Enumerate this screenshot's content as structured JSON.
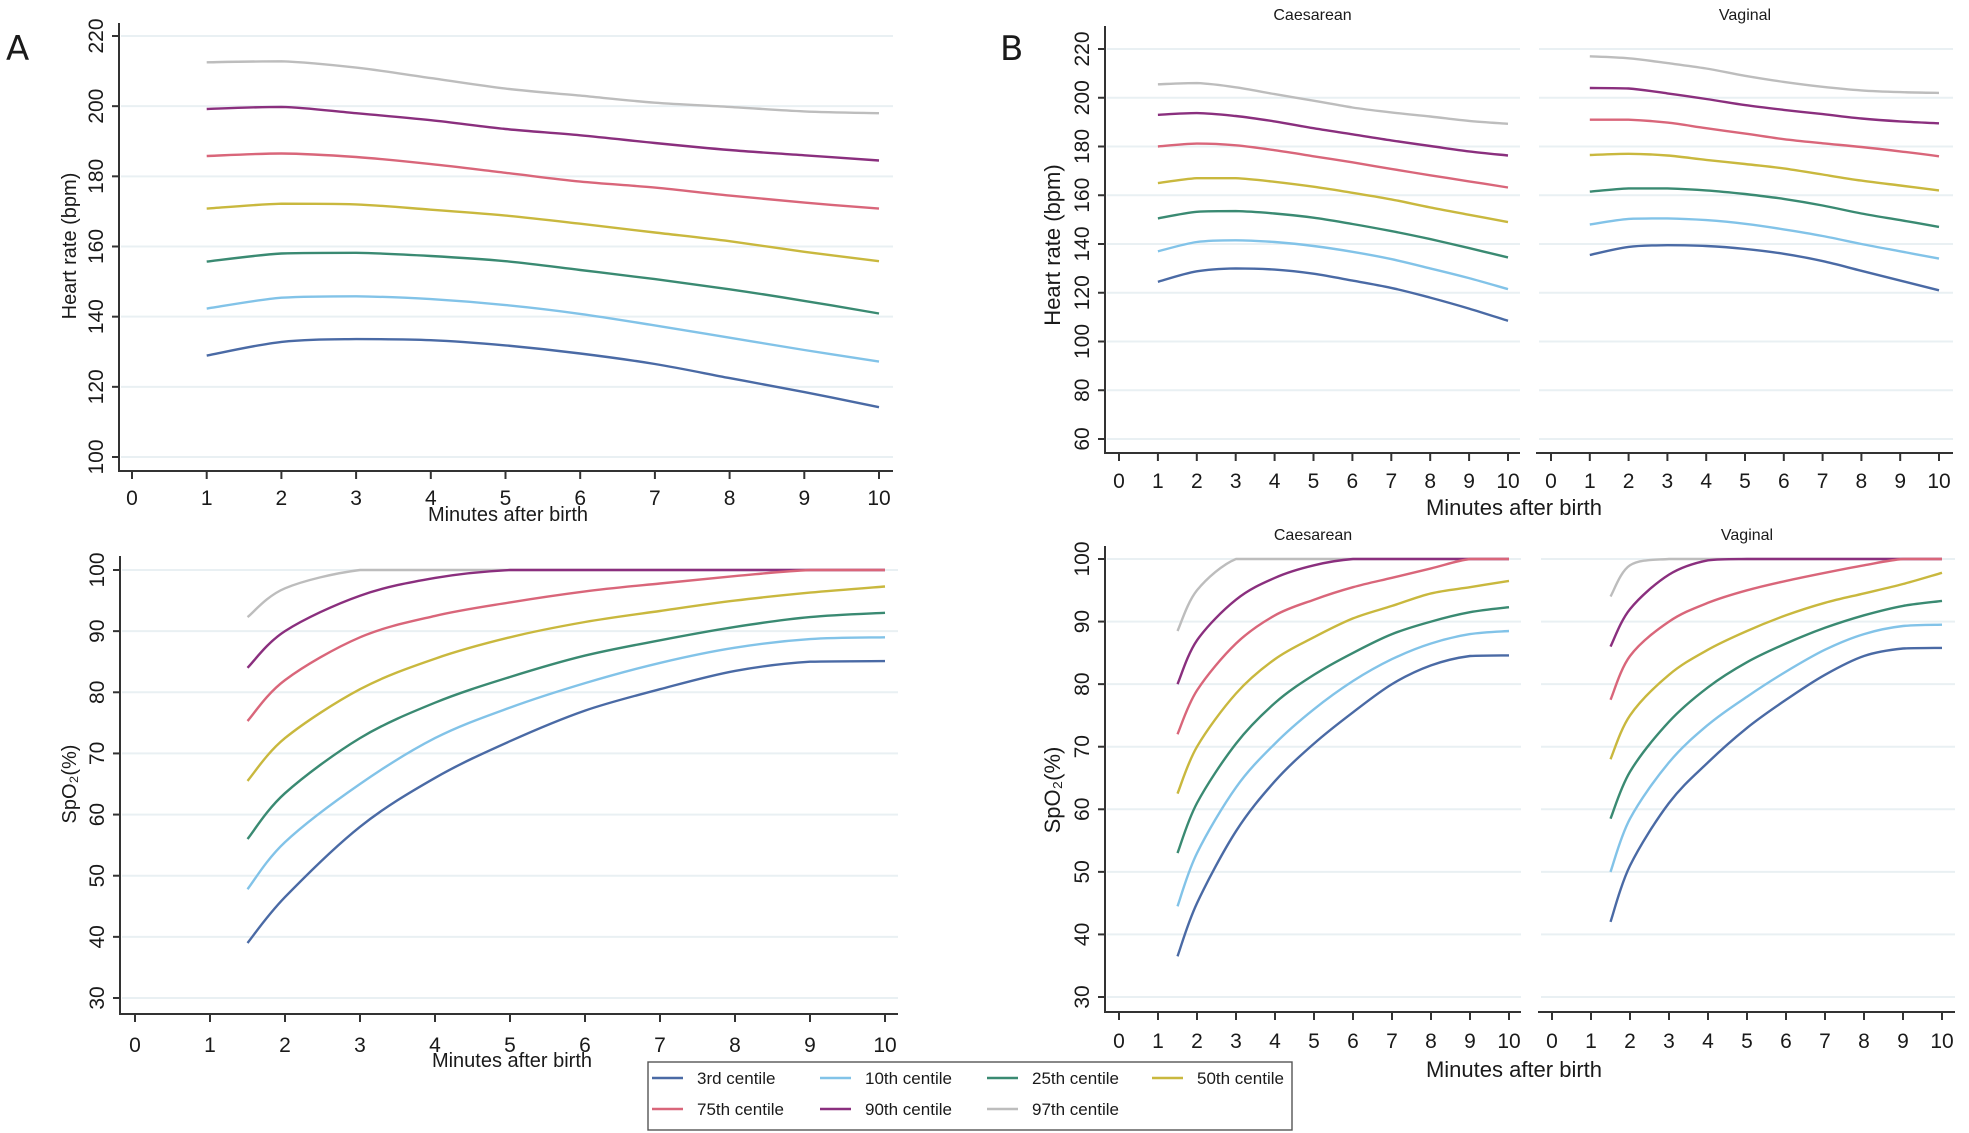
{
  "figure": {
    "panel_labels": [
      "A",
      "B"
    ],
    "legend": [
      {
        "key": "p3",
        "label": "3rd centile",
        "color": "#4a6aa5"
      },
      {
        "key": "p10",
        "label": "10th centile",
        "color": "#82c3e8"
      },
      {
        "key": "p25",
        "label": "25th centile",
        "color": "#3a8a72"
      },
      {
        "key": "p50",
        "label": "50th centile",
        "color": "#c9b83e"
      },
      {
        "key": "p75",
        "label": "75th centile",
        "color": "#d9667a"
      },
      {
        "key": "p90",
        "label": "90th centile",
        "color": "#8a2f7e"
      },
      {
        "key": "p97",
        "label": "97th centile",
        "color": "#bdbdbd"
      }
    ]
  },
  "chart_data": [
    {
      "id": "A-hr",
      "panel": "A",
      "type": "line",
      "title": "",
      "xlabel": "Minutes after birth",
      "ylabel": "Heart rate (bpm)",
      "xlim": [
        0,
        10
      ],
      "ylim": [
        100,
        220
      ],
      "xticks": [
        0,
        1,
        2,
        3,
        4,
        5,
        6,
        7,
        8,
        9,
        10
      ],
      "yticks": [
        100,
        120,
        140,
        160,
        180,
        200,
        220
      ],
      "grid": true,
      "x": [
        1,
        2,
        3,
        4,
        5,
        6,
        7,
        8,
        9,
        10
      ],
      "series": [
        {
          "name": "3rd centile",
          "key": "p3",
          "values": [
            128.9,
            132.8,
            133.6,
            133.3,
            131.8,
            129.5,
            126.5,
            122.5,
            118.5,
            114.2
          ]
        },
        {
          "name": "10th centile",
          "key": "p10",
          "values": [
            142.3,
            145.4,
            145.8,
            145.0,
            143.3,
            140.8,
            137.5,
            134.0,
            130.5,
            127.2
          ]
        },
        {
          "name": "25th centile",
          "key": "p25",
          "values": [
            155.7,
            158.0,
            158.2,
            157.3,
            155.8,
            153.3,
            150.7,
            147.8,
            144.5,
            140.9
          ]
        },
        {
          "name": "50th centile",
          "key": "p50",
          "values": [
            170.8,
            172.2,
            172.0,
            170.5,
            168.8,
            166.5,
            164.0,
            161.5,
            158.5,
            155.8
          ]
        },
        {
          "name": "75th centile",
          "key": "p75",
          "values": [
            185.8,
            186.5,
            185.5,
            183.5,
            181.0,
            178.5,
            176.8,
            174.5,
            172.5,
            170.8
          ]
        },
        {
          "name": "90th centile",
          "key": "p90",
          "values": [
            199.2,
            199.8,
            198.0,
            196.0,
            193.5,
            191.7,
            189.5,
            187.5,
            186.0,
            184.5
          ]
        },
        {
          "name": "97th centile",
          "key": "p97",
          "values": [
            212.5,
            212.8,
            211.0,
            208.0,
            205.0,
            203.0,
            201.0,
            199.8,
            198.5,
            198.0
          ]
        }
      ]
    },
    {
      "id": "A-spo2",
      "panel": "A",
      "type": "line",
      "title": "",
      "xlabel": "Minutes after birth",
      "ylabel": "SpO₂(%)",
      "xlim": [
        0,
        10
      ],
      "ylim": [
        30,
        100
      ],
      "xticks": [
        0,
        1,
        2,
        3,
        4,
        5,
        6,
        7,
        8,
        9,
        10
      ],
      "yticks": [
        30,
        40,
        50,
        60,
        70,
        80,
        90,
        100
      ],
      "grid": true,
      "x": [
        1.5,
        2,
        3,
        4,
        5,
        6,
        7,
        8,
        9,
        10
      ],
      "series": [
        {
          "name": "3rd centile",
          "key": "p3",
          "values": [
            39.0,
            46.5,
            58.0,
            66.0,
            72.0,
            77.0,
            80.5,
            83.5,
            85.0,
            85.1
          ]
        },
        {
          "name": "10th centile",
          "key": "p10",
          "values": [
            47.8,
            55.5,
            65.0,
            72.5,
            77.5,
            81.5,
            84.8,
            87.3,
            88.7,
            89.0
          ]
        },
        {
          "name": "25th centile",
          "key": "p25",
          "values": [
            56.0,
            63.5,
            72.5,
            78.3,
            82.5,
            86.0,
            88.5,
            90.7,
            92.3,
            93.0
          ]
        },
        {
          "name": "50th centile",
          "key": "p50",
          "values": [
            65.5,
            72.5,
            80.5,
            85.5,
            89.0,
            91.5,
            93.3,
            95.0,
            96.3,
            97.3
          ]
        },
        {
          "name": "75th centile",
          "key": "p75",
          "values": [
            75.3,
            82.0,
            89.0,
            92.5,
            94.7,
            96.5,
            97.8,
            99.0,
            100,
            100
          ]
        },
        {
          "name": "90th centile",
          "key": "p90",
          "values": [
            84.0,
            90.0,
            95.8,
            98.7,
            100,
            100,
            100,
            100,
            100,
            100
          ]
        },
        {
          "name": "97th centile",
          "key": "p97",
          "values": [
            92.3,
            97.0,
            100,
            100,
            100,
            100,
            100,
            100,
            100,
            100
          ]
        }
      ]
    },
    {
      "id": "B-hr-caesarean",
      "panel": "B",
      "type": "line",
      "title": "Caesarean",
      "xlabel": "Minutes after birth",
      "ylabel": "Heart rate (bpm)",
      "xlim": [
        0,
        10
      ],
      "ylim": [
        60,
        220
      ],
      "xticks": [
        0,
        1,
        2,
        3,
        4,
        5,
        6,
        7,
        8,
        9,
        10
      ],
      "yticks": [
        60,
        80,
        100,
        120,
        140,
        160,
        180,
        200,
        220
      ],
      "grid": true,
      "x": [
        1,
        2,
        3,
        4,
        5,
        6,
        7,
        8,
        9,
        10
      ],
      "series": [
        {
          "name": "3rd centile",
          "key": "p3",
          "values": [
            124.5,
            128.8,
            130.0,
            129.5,
            127.8,
            125.0,
            122.0,
            118.0,
            113.5,
            108.5
          ]
        },
        {
          "name": "10th centile",
          "key": "p10",
          "values": [
            137.0,
            140.8,
            141.5,
            140.8,
            139.2,
            136.8,
            133.8,
            130.0,
            126.0,
            121.5
          ]
        },
        {
          "name": "25th centile",
          "key": "p25",
          "values": [
            150.5,
            153.2,
            153.5,
            152.5,
            150.8,
            148.2,
            145.3,
            142.0,
            138.3,
            134.5
          ]
        },
        {
          "name": "50th centile",
          "key": "p50",
          "values": [
            165.0,
            167.0,
            167.0,
            165.5,
            163.5,
            161.0,
            158.3,
            155.0,
            152.0,
            149.0
          ]
        },
        {
          "name": "75th centile",
          "key": "p75",
          "values": [
            180.0,
            181.2,
            180.5,
            178.5,
            176.0,
            173.5,
            170.8,
            168.2,
            165.7,
            163.2
          ]
        },
        {
          "name": "90th centile",
          "key": "p90",
          "values": [
            193.0,
            193.7,
            192.5,
            190.3,
            187.5,
            185.0,
            182.5,
            180.2,
            178.0,
            176.3
          ]
        },
        {
          "name": "97th centile",
          "key": "p97",
          "values": [
            205.5,
            206.0,
            204.3,
            201.5,
            198.8,
            196.0,
            194.0,
            192.3,
            190.5,
            189.3
          ]
        }
      ]
    },
    {
      "id": "B-hr-vaginal",
      "panel": "B",
      "type": "line",
      "title": "Vaginal",
      "xlabel": "Minutes after birth",
      "ylabel": "Heart rate (bpm)",
      "xlim": [
        0,
        10
      ],
      "ylim": [
        60,
        220
      ],
      "xticks": [
        0,
        1,
        2,
        3,
        4,
        5,
        6,
        7,
        8,
        9,
        10
      ],
      "yticks": [
        60,
        80,
        100,
        120,
        140,
        160,
        180,
        200,
        220
      ],
      "grid": true,
      "x": [
        1,
        2,
        3,
        4,
        5,
        6,
        7,
        8,
        9,
        10
      ],
      "series": [
        {
          "name": "3rd centile",
          "key": "p3",
          "values": [
            135.5,
            138.8,
            139.5,
            139.2,
            138.0,
            136.0,
            133.0,
            129.0,
            125.0,
            121.0
          ]
        },
        {
          "name": "10th centile",
          "key": "p10",
          "values": [
            148.0,
            150.3,
            150.5,
            149.8,
            148.3,
            146.0,
            143.3,
            140.0,
            137.0,
            134.0
          ]
        },
        {
          "name": "25th centile",
          "key": "p25",
          "values": [
            161.5,
            162.8,
            162.8,
            162.0,
            160.5,
            158.5,
            155.8,
            152.5,
            149.8,
            147.0
          ]
        },
        {
          "name": "50th centile",
          "key": "p50",
          "values": [
            176.5,
            177.0,
            176.3,
            174.5,
            172.8,
            171.0,
            168.5,
            166.0,
            164.0,
            162.0
          ]
        },
        {
          "name": "75th centile",
          "key": "p75",
          "values": [
            191.0,
            191.0,
            189.8,
            187.5,
            185.3,
            183.0,
            181.3,
            179.8,
            178.0,
            176.0
          ]
        },
        {
          "name": "90th centile",
          "key": "p90",
          "values": [
            204.0,
            203.8,
            201.8,
            199.5,
            197.0,
            195.0,
            193.3,
            191.5,
            190.3,
            189.5
          ]
        },
        {
          "name": "97th centile",
          "key": "p97",
          "values": [
            217.0,
            216.2,
            214.2,
            212.0,
            209.0,
            206.5,
            204.5,
            203.0,
            202.3,
            202.0
          ]
        }
      ]
    },
    {
      "id": "B-spo2-caesarean",
      "panel": "B",
      "type": "line",
      "title": "Caesarean",
      "xlabel": "Minutes after birth",
      "ylabel": "SpO₂(%)",
      "xlim": [
        0,
        10
      ],
      "ylim": [
        30,
        100
      ],
      "xticks": [
        0,
        1,
        2,
        3,
        4,
        5,
        6,
        7,
        8,
        9,
        10
      ],
      "yticks": [
        30,
        40,
        50,
        60,
        70,
        80,
        90,
        100
      ],
      "grid": true,
      "x": [
        1.5,
        2,
        3,
        4,
        5,
        6,
        7,
        8,
        9,
        10
      ],
      "series": [
        {
          "name": "3rd centile",
          "key": "p3",
          "values": [
            36.5,
            45.0,
            56.5,
            64.5,
            70.5,
            75.5,
            80.0,
            83.0,
            84.5,
            84.6
          ]
        },
        {
          "name": "10th centile",
          "key": "p10",
          "values": [
            44.5,
            53.0,
            63.5,
            70.5,
            76.0,
            80.5,
            84.0,
            86.5,
            88.0,
            88.5
          ]
        },
        {
          "name": "25th centile",
          "key": "p25",
          "values": [
            53.0,
            61.0,
            70.5,
            77.0,
            81.5,
            85.0,
            88.0,
            90.0,
            91.5,
            92.3
          ]
        },
        {
          "name": "50th centile",
          "key": "p50",
          "values": [
            62.5,
            70.0,
            78.5,
            84.0,
            87.5,
            90.5,
            92.5,
            94.5,
            95.5,
            96.5
          ]
        },
        {
          "name": "75th centile",
          "key": "p75",
          "values": [
            72.0,
            79.0,
            86.5,
            91.0,
            93.5,
            95.5,
            97.0,
            98.5,
            100,
            100
          ]
        },
        {
          "name": "90th centile",
          "key": "p90",
          "values": [
            80.0,
            87.0,
            93.5,
            97.0,
            99.0,
            100,
            100,
            100,
            100,
            100
          ]
        },
        {
          "name": "97th centile",
          "key": "p97",
          "values": [
            88.5,
            95.0,
            100,
            100,
            100,
            100,
            100,
            100,
            100,
            100
          ]
        }
      ]
    },
    {
      "id": "B-spo2-vaginal",
      "panel": "B",
      "type": "line",
      "title": "Vaginal",
      "xlabel": "Minutes after birth",
      "ylabel": "SpO₂(%)",
      "xlim": [
        0,
        10
      ],
      "ylim": [
        30,
        100
      ],
      "xticks": [
        0,
        1,
        2,
        3,
        4,
        5,
        6,
        7,
        8,
        9,
        10
      ],
      "yticks": [
        30,
        40,
        50,
        60,
        70,
        80,
        90,
        100
      ],
      "grid": true,
      "x": [
        1.5,
        2,
        3,
        4,
        5,
        6,
        7,
        8,
        9,
        10
      ],
      "series": [
        {
          "name": "3rd centile",
          "key": "p3",
          "values": [
            42.0,
            51.0,
            61.0,
            67.5,
            73.0,
            77.5,
            81.5,
            84.5,
            85.7,
            85.8
          ]
        },
        {
          "name": "10th centile",
          "key": "p10",
          "values": [
            50.0,
            58.5,
            67.5,
            73.5,
            78.0,
            82.0,
            85.5,
            88.0,
            89.3,
            89.5
          ]
        },
        {
          "name": "25th centile",
          "key": "p25",
          "values": [
            58.5,
            66.0,
            74.0,
            79.5,
            83.5,
            86.5,
            89.0,
            91.0,
            92.5,
            93.3
          ]
        },
        {
          "name": "50th centile",
          "key": "p50",
          "values": [
            68.0,
            75.0,
            81.5,
            85.5,
            88.5,
            91.0,
            93.0,
            94.5,
            96.0,
            97.8
          ]
        },
        {
          "name": "75th centile",
          "key": "p75",
          "values": [
            77.5,
            84.5,
            90.0,
            93.0,
            95.0,
            96.5,
            97.8,
            99.0,
            100,
            100
          ]
        },
        {
          "name": "90th centile",
          "key": "p90",
          "values": [
            86.0,
            92.0,
            97.5,
            99.8,
            100,
            100,
            100,
            100,
            100,
            100
          ]
        },
        {
          "name": "97th centile",
          "key": "p97",
          "values": [
            94.0,
            99.0,
            100,
            100,
            100,
            100,
            100,
            100,
            100,
            100
          ]
        }
      ]
    }
  ]
}
